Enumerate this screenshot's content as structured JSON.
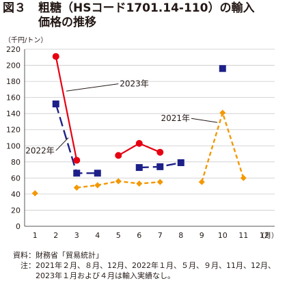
{
  "title": {
    "number": "図３",
    "line1": "粗糖（HSコード1701.14-110）の輸入",
    "line2": "価格の推移"
  },
  "notes": {
    "source_label": "資料：",
    "source_text": "財務省「貿易統計」",
    "note_label": "注：",
    "note_text": "2021年２月、８月、12月、2022年１月、５月、９月、11月、12月、2023年１月および４月は輸入実績なし。"
  },
  "chart_data": {
    "type": "line",
    "ylabel": "（千円/トン）",
    "xunit": "（月）",
    "ylim": [
      0,
      220
    ],
    "yticks": [
      0,
      20,
      40,
      60,
      80,
      100,
      120,
      140,
      160,
      180,
      200,
      220
    ],
    "xlim": [
      0.5,
      12.5
    ],
    "categories": [
      "1",
      "2",
      "3",
      "4",
      "5",
      "6",
      "7",
      "8",
      "9",
      "10",
      "11",
      "12"
    ],
    "grid": true,
    "series": [
      {
        "name": "2021年",
        "color": "#f39800",
        "line": "dashed",
        "marker": "diamond",
        "segments": [
          [
            [
              1,
              41
            ]
          ],
          [
            [
              3,
              48
            ],
            [
              4,
              51
            ],
            [
              5,
              56
            ],
            [
              6,
              53
            ],
            [
              7,
              55
            ]
          ],
          [
            [
              9,
              55
            ],
            [
              10,
              141
            ],
            [
              11,
              60
            ]
          ]
        ]
      },
      {
        "name": "2022年",
        "color": "#1d2088",
        "line": "longdash",
        "marker": "square",
        "segments": [
          [
            [
              2,
              152
            ],
            [
              3,
              66
            ],
            [
              4,
              66
            ]
          ],
          [
            [
              6,
              73
            ],
            [
              7,
              74
            ],
            [
              8,
              79
            ]
          ],
          [
            [
              10,
              196
            ]
          ]
        ]
      },
      {
        "name": "2023年",
        "color": "#e60012",
        "line": "solid",
        "marker": "circle",
        "segments": [
          [
            [
              2,
              211
            ],
            [
              3,
              82
            ]
          ],
          [
            [
              5,
              88
            ],
            [
              6,
              103
            ],
            [
              7,
              92
            ]
          ]
        ]
      }
    ],
    "annotations": [
      {
        "text": "2023年",
        "series": 2,
        "at": [
          5,
          177
        ],
        "point": [
          2.5,
          168
        ]
      },
      {
        "text": "2021年",
        "series": 0,
        "at": [
          8.5,
          134
        ],
        "point": [
          9.75,
          129
        ]
      },
      {
        "text": "2022年",
        "series": 1,
        "at": [
          2,
          94
        ],
        "point": [
          2.6,
          110
        ]
      }
    ]
  }
}
